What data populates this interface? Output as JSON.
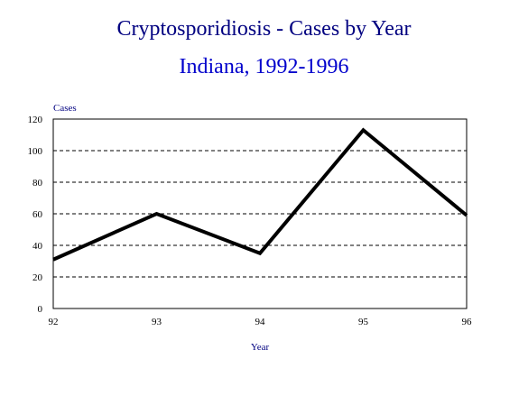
{
  "colors": {
    "title": "#000080",
    "subtitle": "#0000CC",
    "axis_text": "#000080",
    "tick_text": "#000000",
    "line": "#000000",
    "grid": "#000000"
  },
  "chart_data": {
    "type": "line",
    "title": "Cryptosporidiosis - Cases by Year",
    "subtitle": "Indiana, 1992-1996",
    "xlabel": "Year",
    "ylabel": "Cases",
    "x": [
      "92",
      "93",
      "94",
      "95",
      "96"
    ],
    "series": [
      {
        "values": [
          31,
          60,
          35,
          113,
          59
        ]
      }
    ],
    "ylim": [
      0,
      120
    ],
    "yticks": [
      0,
      20,
      40,
      60,
      80,
      100,
      120
    ],
    "grid": "horizontal dashed",
    "legend": "none"
  }
}
